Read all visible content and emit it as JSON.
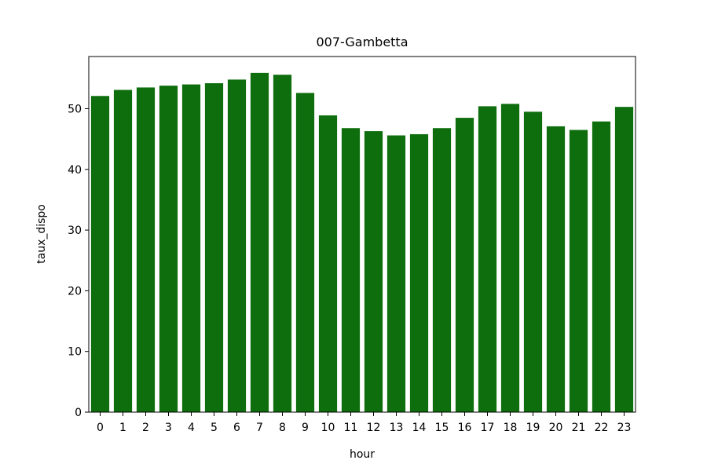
{
  "chart_data": {
    "type": "bar",
    "title": "007-Gambetta",
    "xlabel": "hour",
    "ylabel": "taux_dispo",
    "categories": [
      "0",
      "1",
      "2",
      "3",
      "4",
      "5",
      "6",
      "7",
      "8",
      "9",
      "10",
      "11",
      "12",
      "13",
      "14",
      "15",
      "16",
      "17",
      "18",
      "19",
      "20",
      "21",
      "22",
      "23"
    ],
    "values": [
      52.1,
      53.1,
      53.5,
      53.8,
      54.0,
      54.2,
      54.8,
      55.9,
      55.6,
      52.6,
      48.9,
      46.8,
      46.3,
      45.6,
      45.8,
      46.8,
      48.5,
      50.4,
      50.8,
      49.5,
      47.1,
      46.5,
      47.9,
      50.3
    ],
    "ylim": [
      0,
      58.6
    ],
    "yticks": [
      0,
      10,
      20,
      30,
      40,
      50
    ],
    "bar_color": "#0e6e0e",
    "grid": false,
    "legend": "none"
  }
}
